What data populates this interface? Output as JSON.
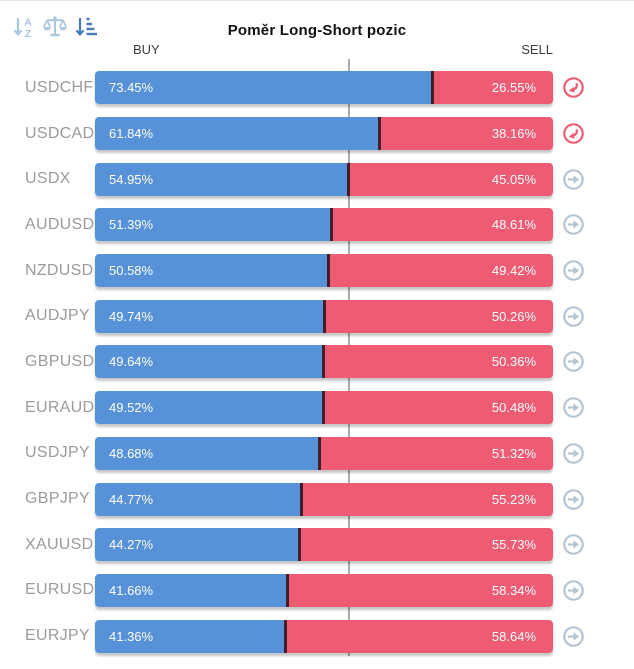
{
  "header": {
    "title": "Poměr Long-Short pozic",
    "buy_label": "BUY",
    "sell_label": "SELL",
    "sort_icons": [
      {
        "name": "sort-alphabetical-icon",
        "active": false
      },
      {
        "name": "balance-scale-icon",
        "active": false
      },
      {
        "name": "sort-amount-icon",
        "active": true
      }
    ]
  },
  "rows": [
    {
      "pair": "USDCHF",
      "buy_label": "73.45%",
      "sell_label": "26.55%",
      "buy": 73.45,
      "sell": 26.55,
      "trend": "down"
    },
    {
      "pair": "USDCAD",
      "buy_label": "61.84%",
      "sell_label": "38.16%",
      "buy": 61.84,
      "sell": 38.16,
      "trend": "down"
    },
    {
      "pair": "USDX",
      "buy_label": "54.95%",
      "sell_label": "45.05%",
      "buy": 54.95,
      "sell": 45.05,
      "trend": "steady"
    },
    {
      "pair": "AUDUSD",
      "buy_label": "51.39%",
      "sell_label": "48.61%",
      "buy": 51.39,
      "sell": 48.61,
      "trend": "steady"
    },
    {
      "pair": "NZDUSD",
      "buy_label": "50.58%",
      "sell_label": "49.42%",
      "buy": 50.58,
      "sell": 49.42,
      "trend": "steady"
    },
    {
      "pair": "AUDJPY",
      "buy_label": "49.74%",
      "sell_label": "50.26%",
      "buy": 49.74,
      "sell": 50.26,
      "trend": "steady"
    },
    {
      "pair": "GBPUSD",
      "buy_label": "49.64%",
      "sell_label": "50.36%",
      "buy": 49.64,
      "sell": 50.36,
      "trend": "steady"
    },
    {
      "pair": "EURAUD",
      "buy_label": "49.52%",
      "sell_label": "50.48%",
      "buy": 49.52,
      "sell": 50.48,
      "trend": "steady"
    },
    {
      "pair": "USDJPY",
      "buy_label": "48.68%",
      "sell_label": "51.32%",
      "buy": 48.68,
      "sell": 51.32,
      "trend": "steady"
    },
    {
      "pair": "GBPJPY",
      "buy_label": "44.77%",
      "sell_label": "55.23%",
      "buy": 44.77,
      "sell": 55.23,
      "trend": "steady"
    },
    {
      "pair": "XAUUSD",
      "buy_label": "44.27%",
      "sell_label": "55.73%",
      "buy": 44.27,
      "sell": 55.73,
      "trend": "steady"
    },
    {
      "pair": "EURUSD",
      "buy_label": "41.66%",
      "sell_label": "58.34%",
      "buy": 41.66,
      "sell": 58.34,
      "trend": "steady"
    },
    {
      "pair": "EURJPY",
      "buy_label": "41.36%",
      "sell_label": "58.64%",
      "buy": 41.36,
      "sell": 58.64,
      "trend": "steady"
    }
  ],
  "colors": {
    "buy_bar": "#5792d8",
    "sell_bar": "#ee5c74",
    "pair_label": "#9b9b9b",
    "center_line": "#ababab",
    "neutral_icon": "#b5c4d3",
    "down_icon": "#ee5c74",
    "sort_icon_active": "#4a7ab3",
    "sort_icon_inactive": "#a9c6e2",
    "title": "#111111",
    "column_label": "#3d3d3d"
  },
  "chart_data": {
    "type": "bar",
    "subtype": "horizontal-stacked-percentage",
    "title": "Poměr Long-Short pozic",
    "categories": [
      "USDCHF",
      "USDCAD",
      "USDX",
      "AUDUSD",
      "NZDUSD",
      "AUDJPY",
      "GBPUSD",
      "EURAUD",
      "USDJPY",
      "GBPJPY",
      "XAUUSD",
      "EURUSD",
      "EURJPY"
    ],
    "series": [
      {
        "name": "BUY",
        "color": "#5792d8",
        "values": [
          73.45,
          61.84,
          54.95,
          51.39,
          50.58,
          49.74,
          49.64,
          49.52,
          48.68,
          44.77,
          44.27,
          41.66,
          41.36
        ]
      },
      {
        "name": "SELL",
        "color": "#ee5c74",
        "values": [
          26.55,
          38.16,
          45.05,
          48.61,
          49.42,
          50.26,
          50.36,
          50.48,
          51.32,
          55.23,
          55.73,
          58.34,
          58.64
        ]
      }
    ],
    "xlim": [
      0,
      100
    ],
    "reference_line": {
      "value": 50,
      "orientation": "vertical"
    },
    "trend_markers": [
      "down",
      "down",
      "steady",
      "steady",
      "steady",
      "steady",
      "steady",
      "steady",
      "steady",
      "steady",
      "steady",
      "steady",
      "steady"
    ],
    "legend_position": "top (BUY left, SELL right)",
    "grid": false
  }
}
